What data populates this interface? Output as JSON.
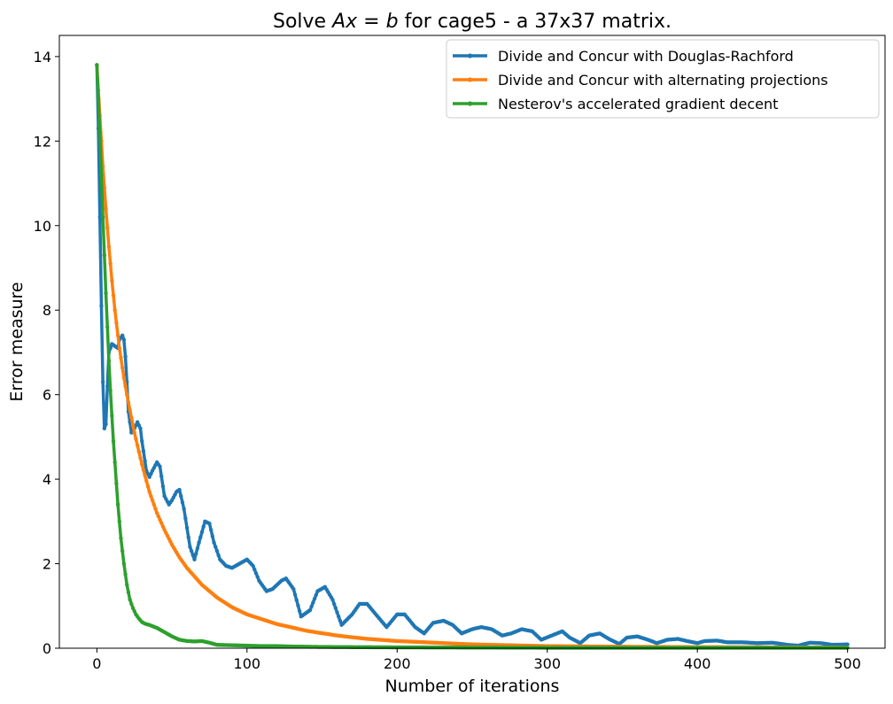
{
  "chart_data": {
    "type": "line",
    "title": "Solve Ax = b for cage5 - a 37x37 matrix.",
    "title_parts": {
      "prefix": "Solve ",
      "math_a": "A",
      "math_x": "x",
      "math_eq": " = ",
      "math_b": "b",
      "suffix": " for cage5 - a 37x37 matrix."
    },
    "xlabel": "Number of iterations",
    "ylabel": "Error measure",
    "xlim": [
      -25,
      525
    ],
    "ylim": [
      0,
      14.5
    ],
    "xticks": [
      0,
      100,
      200,
      300,
      400,
      500
    ],
    "xtick_labels": [
      "0",
      "100",
      "200",
      "300",
      "400",
      "500"
    ],
    "yticks": [
      0,
      2,
      4,
      6,
      8,
      10,
      12,
      14
    ],
    "ytick_labels": [
      "0",
      "2",
      "4",
      "6",
      "8",
      "10",
      "12",
      "14"
    ],
    "grid": false,
    "legend_position": "top-right",
    "legend": [
      "Divide and Concur with Douglas-Rachford",
      "Divide and Concur with alternating projections",
      "Nesterov's accelerated gradient decent"
    ],
    "series": [
      {
        "name": "Divide and Concur with Douglas-Rachford",
        "color": "#1f77b4",
        "x": [
          0,
          1,
          2,
          3,
          4,
          5,
          6,
          7,
          8,
          10,
          12,
          14,
          15,
          17,
          18,
          19,
          20,
          21,
          23,
          25,
          27,
          29,
          30,
          33,
          35,
          37,
          40,
          42,
          45,
          48,
          50,
          53,
          55,
          58,
          62,
          65,
          68,
          72,
          75,
          78,
          82,
          86,
          90,
          95,
          100,
          104,
          108,
          113,
          117,
          123,
          126,
          131,
          136,
          142,
          147,
          152,
          157,
          163,
          170,
          175,
          180,
          187,
          193,
          200,
          205,
          212,
          218,
          224,
          231,
          237,
          243,
          250,
          256,
          263,
          270,
          276,
          283,
          290,
          296,
          303,
          310,
          315,
          322,
          328,
          335,
          341,
          348,
          353,
          360,
          367,
          373,
          380,
          387,
          393,
          400,
          405,
          413,
          420,
          430,
          440,
          450,
          460,
          467,
          475,
          482,
          490,
          500
        ],
        "y": [
          13.8,
          12.3,
          10.2,
          8.1,
          6.3,
          5.2,
          5.3,
          6.2,
          7.0,
          7.2,
          7.15,
          7.1,
          7.3,
          7.4,
          7.3,
          6.9,
          6.3,
          5.6,
          5.1,
          5.2,
          5.35,
          5.2,
          4.9,
          4.2,
          4.05,
          4.2,
          4.4,
          4.3,
          3.6,
          3.4,
          3.5,
          3.7,
          3.75,
          3.3,
          2.4,
          2.1,
          2.5,
          3.0,
          2.95,
          2.5,
          2.1,
          1.95,
          1.9,
          2.0,
          2.1,
          1.95,
          1.6,
          1.35,
          1.4,
          1.6,
          1.65,
          1.4,
          0.75,
          0.9,
          1.35,
          1.45,
          1.15,
          0.55,
          0.8,
          1.05,
          1.05,
          0.75,
          0.5,
          0.8,
          0.8,
          0.5,
          0.35,
          0.6,
          0.65,
          0.55,
          0.35,
          0.45,
          0.5,
          0.45,
          0.3,
          0.35,
          0.45,
          0.4,
          0.2,
          0.3,
          0.4,
          0.25,
          0.12,
          0.3,
          0.35,
          0.22,
          0.1,
          0.25,
          0.28,
          0.2,
          0.12,
          0.2,
          0.22,
          0.17,
          0.12,
          0.17,
          0.18,
          0.14,
          0.14,
          0.12,
          0.13,
          0.08,
          0.06,
          0.13,
          0.12,
          0.08,
          0.09
        ]
      },
      {
        "name": "Divide and Concur with alternating projections",
        "color": "#ff7f0e",
        "x": [
          0,
          2,
          4,
          6,
          8,
          10,
          12,
          15,
          18,
          20,
          25,
          30,
          35,
          40,
          45,
          50,
          55,
          60,
          70,
          80,
          90,
          100,
          120,
          140,
          160,
          180,
          200,
          250,
          300,
          350,
          400,
          450,
          500
        ],
        "y": [
          13.8,
          12.6,
          11.4,
          10.4,
          9.5,
          8.7,
          8.0,
          7.1,
          6.4,
          6.0,
          5.1,
          4.35,
          3.7,
          3.2,
          2.8,
          2.45,
          2.15,
          1.9,
          1.5,
          1.2,
          0.97,
          0.8,
          0.57,
          0.41,
          0.3,
          0.22,
          0.17,
          0.09,
          0.05,
          0.035,
          0.025,
          0.02,
          0.015
        ]
      },
      {
        "name": "Nesterov's accelerated gradient decent",
        "color": "#2ca02c",
        "x": [
          0,
          1,
          2,
          3,
          4,
          5,
          6,
          7,
          8,
          9,
          10,
          11,
          12,
          13,
          14,
          15,
          16,
          17,
          18,
          19,
          20,
          22,
          24,
          26,
          28,
          30,
          32,
          35,
          40,
          45,
          50,
          55,
          60,
          65,
          70,
          75,
          80,
          90,
          100,
          110,
          120,
          130,
          150,
          200,
          250,
          300,
          400,
          500
        ],
        "y": [
          13.8,
          13.0,
          12.2,
          11.2,
          10.2,
          9.3,
          8.4,
          7.6,
          6.8,
          6.1,
          5.5,
          4.9,
          4.4,
          3.9,
          3.4,
          3.0,
          2.6,
          2.3,
          2.0,
          1.75,
          1.5,
          1.15,
          0.95,
          0.8,
          0.7,
          0.62,
          0.58,
          0.55,
          0.48,
          0.38,
          0.28,
          0.2,
          0.17,
          0.16,
          0.17,
          0.13,
          0.08,
          0.07,
          0.06,
          0.05,
          0.05,
          0.04,
          0.03,
          0.02,
          0.015,
          0.01,
          0.01,
          0.01
        ]
      }
    ]
  }
}
